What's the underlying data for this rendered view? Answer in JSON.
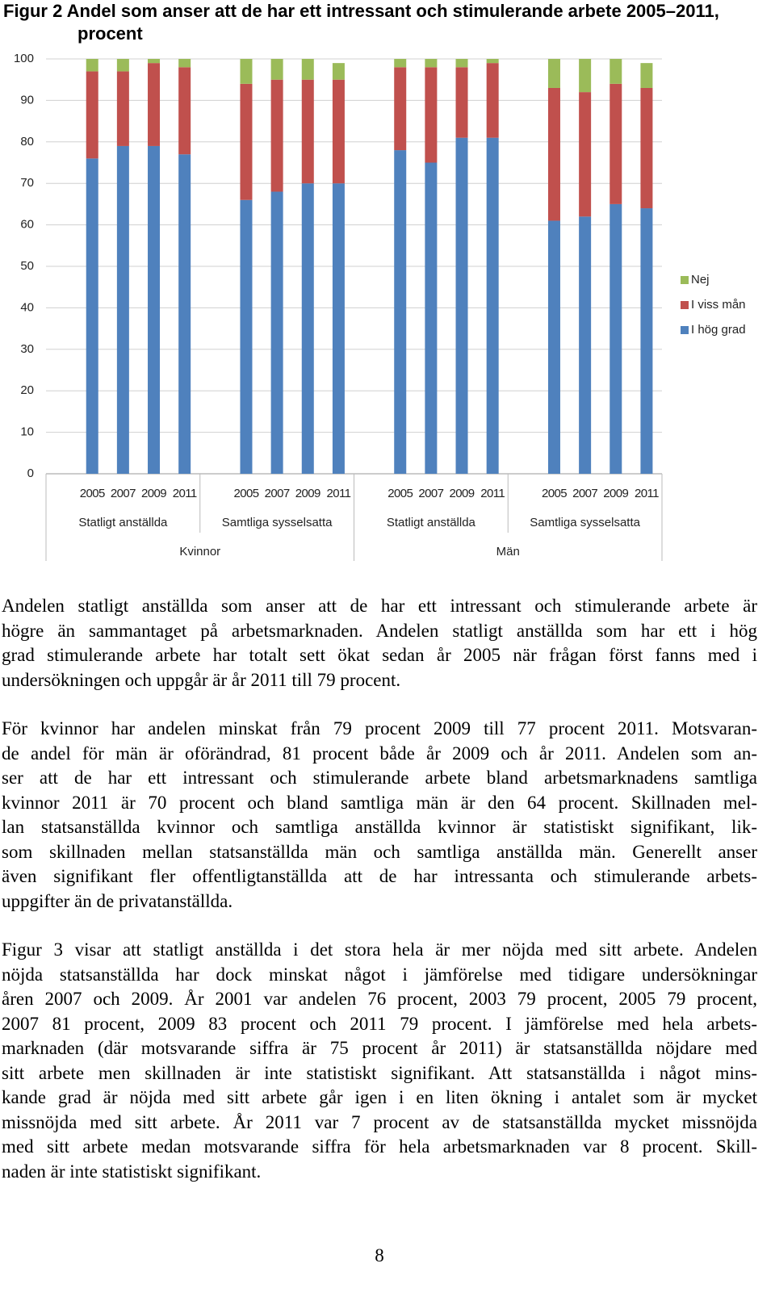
{
  "chart_data": {
    "type": "bar",
    "stacked": true,
    "title": "Figur 2 Andel som anser att de har ett intressant och stimulerande arbete 2005–2011, procent",
    "categories": [
      "2005",
      "2007",
      "2009",
      "2011",
      "2005",
      "2007",
      "2009",
      "2011",
      "2005",
      "2007",
      "2009",
      "2011",
      "2005",
      "2007",
      "2009",
      "2011"
    ],
    "category_groups": [
      "Statligt anställda",
      "Samtliga sysselsatta",
      "Statligt anställda",
      "Samtliga sysselsatta"
    ],
    "category_supergroups": [
      "Kvinnor",
      "Män"
    ],
    "series": [
      {
        "name": "I hög grad",
        "color": "#4f81bd",
        "values": [
          76,
          79,
          79,
          77,
          66,
          68,
          70,
          70,
          78,
          75,
          81,
          81,
          61,
          62,
          65,
          64
        ]
      },
      {
        "name": "I viss mån",
        "color": "#c0504d",
        "values": [
          21,
          18,
          20,
          21,
          28,
          27,
          25,
          25,
          20,
          23,
          17,
          18,
          32,
          30,
          29,
          29
        ]
      },
      {
        "name": "Nej",
        "color": "#9bbb59",
        "values": [
          3,
          3,
          1,
          2,
          6,
          5,
          5,
          4,
          2,
          2,
          2,
          1,
          7,
          8,
          6,
          6
        ]
      }
    ],
    "ylim": [
      0,
      100
    ],
    "yticks": [
      0,
      10,
      20,
      30,
      40,
      50,
      60,
      70,
      80,
      90,
      100
    ],
    "grid": true,
    "legend": "right"
  },
  "document": {
    "paragraphs": [
      [
        "Andelen statligt anställda som anser att de har ett intressant och stimulerande arbete är",
        "högre än sammantaget på arbetsmarknaden. Andelen statligt anställda som har ett i hög",
        "grad stimulerande arbete har totalt sett ökat sedan år 2005 när frågan först fanns med i",
        "undersökningen och uppgår är år 2011 till 79 procent."
      ],
      [
        "För kvinnor har andelen minskat från 79 procent 2009 till 77 procent 2011. Motsvaran-",
        "de andel för män är oförändrad, 81 procent både år 2009 och år 2011. Andelen som an-",
        "ser att de har ett intressant och stimulerande arbete bland arbetsmarknadens samtliga",
        "kvinnor 2011 är 70 procent och bland samtliga män är den 64 procent. Skillnaden mel-",
        "lan statsanställda kvinnor och samtliga anställda kvinnor är statistiskt signifikant, lik-",
        "som skillnaden mellan statsanställda män och samtliga anställda män. Generellt anser",
        "även signifikant fler offentligtanställda att de har intressanta och stimulerande arbets-",
        "uppgifter än de privatanställda."
      ],
      [
        "Figur 3 visar att statligt anställda i det stora hela är mer nöjda med sitt arbete. Andelen",
        "nöjda statsanställda har dock minskat något i jämförelse med tidigare undersökningar",
        "åren 2007 och 2009. År 2001 var andelen 76 procent, 2003 79 procent, 2005 79 procent,",
        "2007 81 procent, 2009 83 procent och 2011 79 procent. I jämförelse med hela arbets-",
        "marknaden (där motsvarande siffra är 75 procent år 2011) är statsanställda nöjdare med",
        "sitt arbete men skillnaden är inte statistiskt signifikant. Att statsanställda i något mins-",
        "kande grad är nöjda med sitt arbete går igen i en liten ökning i antalet som är mycket",
        "missnöjda med sitt arbete. År 2011 var 7 procent av de statsanställda mycket missnöjda",
        "med sitt arbete medan motsvarande siffra för hela arbetsmarknaden var 8 procent. Skill-",
        "naden är inte statistiskt signifikant."
      ]
    ],
    "page_number": "8"
  }
}
